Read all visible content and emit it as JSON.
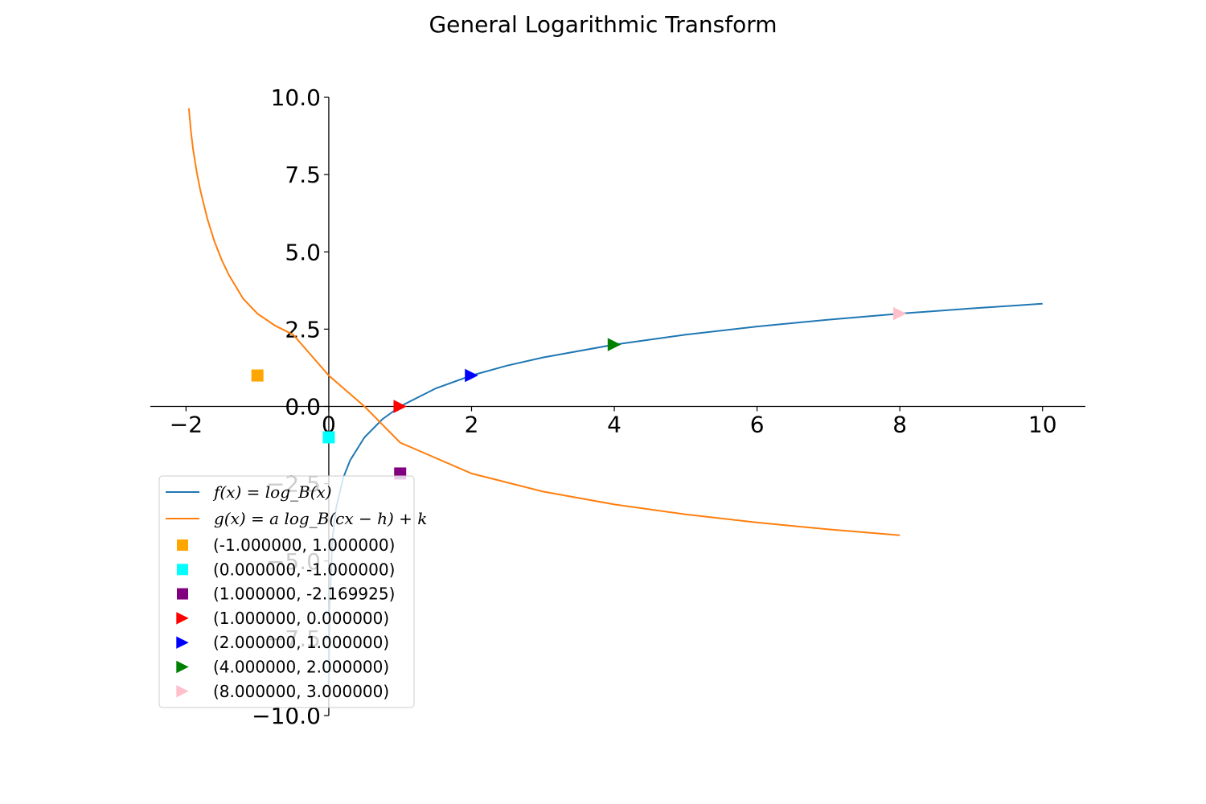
{
  "chart_data": {
    "type": "line",
    "title": "General Logarithmic Transform",
    "xlim": [
      -2.5,
      10.6
    ],
    "ylim": [
      -10.0,
      10.0
    ],
    "x_ticks": [
      -2,
      0,
      2,
      4,
      6,
      8,
      10
    ],
    "x_tick_labels": [
      "−2",
      "0",
      "2",
      "4",
      "6",
      "8",
      "10"
    ],
    "y_ticks": [
      -10.0,
      -7.5,
      -5.0,
      -2.5,
      0.0,
      2.5,
      5.0,
      7.5,
      10.0
    ],
    "y_tick_labels": [
      "−10.0",
      "−7.5",
      "−5.0",
      "−2.5",
      "0.0",
      "2.5",
      "5.0",
      "7.5",
      "10.0"
    ],
    "grid": false,
    "legend_position": "lower-left",
    "series": [
      {
        "name": "f(x) = log_B(x)",
        "color": "#1f77b4",
        "x": [
          0.002,
          0.01,
          0.05,
          0.1,
          0.2,
          0.3,
          0.5,
          0.75,
          1.0,
          1.5,
          2.0,
          2.5,
          3.0,
          4.0,
          5.0,
          6.0,
          7.0,
          8.0,
          9.0,
          10.0
        ],
        "y": [
          -8.966,
          -6.644,
          -4.322,
          -3.322,
          -2.322,
          -1.737,
          -1.0,
          -0.415,
          0.0,
          0.585,
          1.0,
          1.322,
          1.585,
          2.0,
          2.322,
          2.585,
          2.807,
          3.0,
          3.17,
          3.322
        ]
      },
      {
        "name": "g(x) = a log_B(cx − h) + k",
        "color": "#ff7f0e",
        "x": [
          -1.96,
          -1.93,
          -1.9,
          -1.85,
          -1.8,
          -1.7,
          -1.6,
          -1.5,
          -1.4,
          -1.2,
          -1.0,
          -0.75,
          -0.5,
          0.0,
          0.5,
          1.0,
          2.0,
          3.0,
          4.0,
          5.0,
          6.0,
          7.0,
          8.0
        ],
        "y": [
          9.643,
          8.869,
          8.288,
          7.585,
          7.0,
          6.059,
          5.322,
          4.737,
          4.252,
          3.485,
          3.0,
          2.608,
          2.322,
          1.0,
          0.0,
          -1.17,
          -2.17,
          -2.755,
          -3.17,
          -3.492,
          -3.755,
          -3.977,
          -4.17
        ]
      }
    ],
    "markers": [
      {
        "label": "(-1.000000, 1.000000)",
        "x": -1.0,
        "y": 1.0,
        "shape": "square",
        "color": "#ffa500"
      },
      {
        "label": "(0.000000, -1.000000)",
        "x": 0.0,
        "y": -1.0,
        "shape": "square",
        "color": "#00ffff"
      },
      {
        "label": "(1.000000, -2.169925)",
        "x": 1.0,
        "y": -2.169925,
        "shape": "square",
        "color": "#800080"
      },
      {
        "label": "(1.000000, 0.000000)",
        "x": 1.0,
        "y": 0.0,
        "shape": "triangle-right",
        "color": "#ff0000"
      },
      {
        "label": "(2.000000, 1.000000)",
        "x": 2.0,
        "y": 1.0,
        "shape": "triangle-right",
        "color": "#0000ff"
      },
      {
        "label": "(4.000000, 2.000000)",
        "x": 4.0,
        "y": 2.0,
        "shape": "triangle-right",
        "color": "#008000"
      },
      {
        "label": "(8.000000, 3.000000)",
        "x": 8.0,
        "y": 3.0,
        "shape": "triangle-right",
        "color": "#ffc0cb"
      }
    ]
  }
}
